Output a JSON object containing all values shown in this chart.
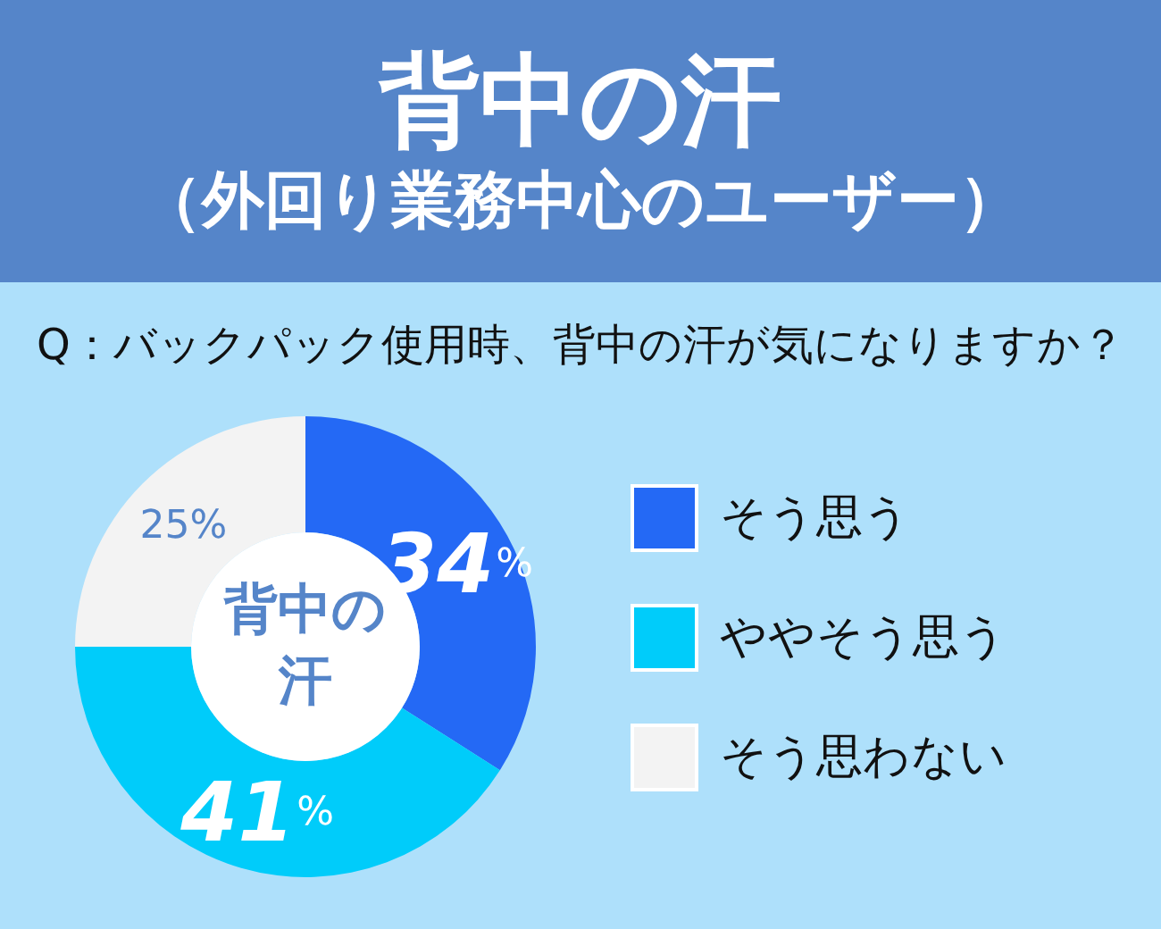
{
  "chart_data": {
    "type": "donut",
    "title": "背中の汗",
    "subtitle": "（外回り業務中心のユーザー）",
    "annotations": [
      "Q：バックパック使用時、背中の汗が気になりますか？",
      "背中の汗"
    ],
    "categories": [
      "そう思う",
      "ややそう思う",
      "そう思わない"
    ],
    "values": [
      34,
      41,
      25
    ],
    "colors": [
      "#2469f5",
      "#00ccfa",
      "#f3f3f3"
    ],
    "value_labels": [
      "34%",
      "41%",
      "25%"
    ],
    "legend": "right"
  }
}
